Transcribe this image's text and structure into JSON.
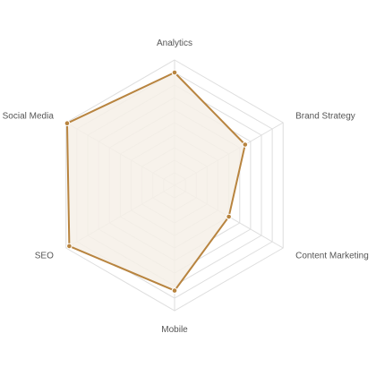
{
  "chart_data": {
    "type": "radar",
    "categories": [
      "Analytics",
      "Brand Strategy",
      "Content Marketing",
      "Mobile",
      "SEO",
      "Social Media"
    ],
    "series": [
      {
        "values": [
          90,
          65,
          50,
          84,
          97,
          99
        ]
      }
    ],
    "rlim": [
      0,
      100
    ],
    "grid_rings": 10,
    "grid": true,
    "legend": "none",
    "colors": {
      "line": "#b8843f",
      "fill": "#f6f0e8",
      "grid": "#dedede",
      "label": "#555555"
    }
  }
}
